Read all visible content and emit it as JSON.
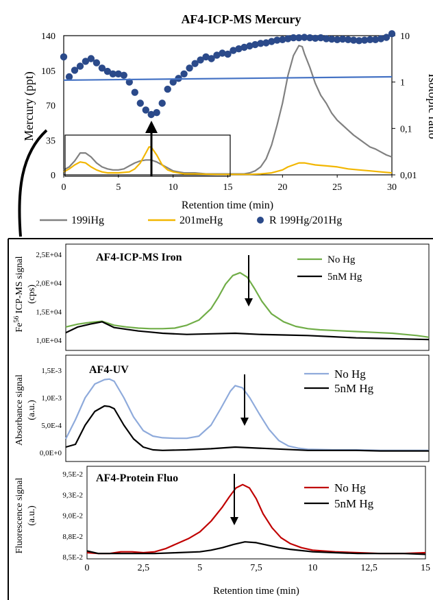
{
  "chart_data": [
    {
      "type": "line",
      "title": "AF4-ICP-MS Mercury",
      "xlabel": "Retention time (min)",
      "ylabel": "Mercury (ppt)",
      "y2label": "Isotopic ratio",
      "xlim": [
        0,
        30
      ],
      "ylim": [
        0,
        140
      ],
      "y2lim": [
        0.01,
        10
      ],
      "y2scale": "log",
      "x_ticks": [
        "0",
        "5",
        "10",
        "15",
        "20",
        "25",
        "30"
      ],
      "y_ticks": [
        "0",
        "35",
        "70",
        "105",
        "140"
      ],
      "y2_ticks": [
        "0,01",
        "0,1",
        "1",
        "10"
      ],
      "legend_position": "bottom",
      "series": [
        {
          "name": "199iHg",
          "color": "#808080",
          "x": [
            0,
            0.5,
            1,
            1.5,
            2,
            2.5,
            3,
            3.5,
            4,
            4.5,
            5,
            5.5,
            6,
            6.5,
            7,
            7.5,
            8,
            8.5,
            9,
            9.5,
            10,
            10.5,
            11,
            12,
            13,
            14,
            15,
            16,
            16.5,
            17,
            17.5,
            18,
            18.5,
            19,
            19.5,
            20,
            20.5,
            21,
            21.5,
            21.8,
            22,
            22.5,
            23,
            23.5,
            24,
            24.5,
            25,
            25.5,
            26,
            26.5,
            27,
            27.5,
            28,
            28.5,
            29,
            29.5,
            30
          ],
          "values": [
            5,
            8,
            14,
            22,
            22,
            18,
            12,
            8,
            6,
            5,
            5,
            6,
            9,
            12,
            14,
            15,
            15,
            13,
            10,
            7,
            4,
            3,
            2,
            2,
            1,
            1,
            1,
            1,
            1,
            2,
            4,
            8,
            16,
            30,
            50,
            72,
            100,
            120,
            130,
            129,
            122,
            108,
            92,
            80,
            72,
            62,
            55,
            50,
            45,
            40,
            36,
            32,
            28,
            26,
            23,
            20,
            18
          ]
        },
        {
          "name": "201meHg",
          "color": "#f2b600",
          "x": [
            0,
            0.5,
            1,
            1.5,
            2,
            2.5,
            3,
            3.5,
            4,
            5,
            6,
            6.5,
            7,
            7.5,
            7.8,
            8,
            8.5,
            9,
            9.5,
            10,
            11,
            12,
            14,
            16,
            17,
            18,
            19,
            20,
            20.5,
            21,
            21.5,
            22,
            22.5,
            23,
            24,
            25,
            26,
            27,
            28,
            29,
            30
          ],
          "values": [
            3,
            6,
            10,
            13,
            12,
            8,
            5,
            3,
            2,
            2,
            3,
            6,
            12,
            22,
            28,
            28,
            20,
            10,
            5,
            3,
            1,
            1,
            0.5,
            0.5,
            0.5,
            1,
            2,
            5,
            8,
            10,
            12,
            12,
            11,
            10,
            9,
            8,
            6,
            5,
            4,
            3,
            2
          ]
        },
        {
          "name": "R 199Hg/201Hg",
          "color": "#2b4a8a",
          "axis": "secondary",
          "marker": "circle",
          "x": [
            0,
            0.5,
            1,
            1.5,
            2,
            2.5,
            3,
            3.5,
            4,
            4.5,
            5,
            5.5,
            6,
            6.5,
            7,
            7.5,
            8,
            8.5,
            9,
            9.5,
            10,
            10.5,
            11,
            11.5,
            12,
            12.5,
            13,
            13.5,
            14,
            14.5,
            15,
            15.5,
            16,
            16.5,
            17,
            17.5,
            18,
            18.5,
            19,
            19.5,
            20,
            20.5,
            21,
            21.5,
            22,
            22.5,
            23,
            23.5,
            24,
            24.5,
            25,
            25.5,
            26,
            26.5,
            27,
            27.5,
            28,
            28.5,
            29,
            29.5,
            30
          ],
          "values": [
            3.5,
            1.3,
            1.8,
            2.2,
            2.8,
            3.2,
            2.6,
            2.0,
            1.7,
            1.5,
            1.5,
            1.4,
            1.0,
            0.6,
            0.35,
            0.25,
            0.2,
            0.22,
            0.35,
            0.7,
            1.0,
            1.2,
            1.5,
            2.0,
            2.5,
            3.0,
            3.5,
            3.2,
            3.8,
            4.2,
            4.0,
            4.8,
            5.2,
            5.6,
            6.0,
            6.4,
            6.8,
            7.0,
            7.5,
            8.0,
            8.2,
            8.6,
            9.0,
            9.0,
            9.2,
            9.0,
            8.8,
            9.0,
            8.6,
            8.4,
            8.2,
            8.4,
            8.2,
            8.0,
            7.8,
            8.0,
            8.2,
            8.2,
            8.6,
            9.2,
            11.0
          ]
        },
        {
          "name": "",
          "color": "#4472c4",
          "axis": "secondary",
          "x": [
            0,
            30
          ],
          "values": [
            1.1,
            1.3
          ]
        }
      ]
    },
    {
      "type": "line",
      "title": "AF4-ICP-MS Iron",
      "ylabel": "Fe56 ICP-MS signal (cps)",
      "ylabel_parts": [
        "Fe",
        "56",
        " ICP-MS signal",
        "(cps)"
      ],
      "xlim": [
        0,
        15
      ],
      "ylim": [
        10000,
        25000
      ],
      "y_ticks": [
        "1,0E+04",
        "1,5E+04",
        "2,0E+04",
        "2,5E+04"
      ],
      "legend_position": "top-right",
      "series": [
        {
          "name": "No Hg",
          "color": "#70ad47",
          "x": [
            0,
            0.5,
            1,
            1.5,
            2,
            2.5,
            3,
            3.5,
            4,
            4.5,
            5,
            5.5,
            6,
            6.3,
            6.6,
            6.9,
            7.2,
            7.5,
            7.8,
            8.1,
            8.5,
            9,
            9.5,
            10,
            10.5,
            11,
            11.5,
            12,
            12.5,
            13,
            13.5,
            14,
            14.5,
            15
          ],
          "values": [
            12300,
            12800,
            13100,
            13300,
            12600,
            12300,
            12100,
            12000,
            12000,
            12100,
            12600,
            13500,
            15500,
            17500,
            19800,
            21300,
            21800,
            21000,
            19000,
            16800,
            14600,
            13200,
            12400,
            12000,
            11800,
            11700,
            11600,
            11500,
            11400,
            11300,
            11200,
            11000,
            10800,
            10500
          ]
        },
        {
          "name": "5nM Hg",
          "color": "#000000",
          "x": [
            0,
            0.5,
            1,
            1.5,
            2,
            2.5,
            3,
            3.5,
            4,
            5,
            6,
            7,
            8,
            9,
            10,
            11,
            12,
            13,
            14,
            15
          ],
          "values": [
            11300,
            12300,
            12800,
            13200,
            12200,
            11900,
            11600,
            11400,
            11200,
            11000,
            11100,
            11200,
            11000,
            10900,
            10800,
            10600,
            10400,
            10300,
            10200,
            10100
          ]
        }
      ]
    },
    {
      "type": "line",
      "title": "AF4-UV",
      "ylabel": "Absorbance signal (a.u.)",
      "ylabel_parts": [
        "Absorbance signal",
        "(a.u.)"
      ],
      "xlim": [
        0,
        15
      ],
      "ylim": [
        0,
        0.0015
      ],
      "y_ticks": [
        "0,0E+0",
        "5,0E-4",
        "1,0E-3",
        "1,5E-3"
      ],
      "legend_position": "top-right",
      "series": [
        {
          "name": "No Hg",
          "color": "#8eaadb",
          "x": [
            0,
            0.4,
            0.8,
            1.2,
            1.6,
            1.8,
            2.0,
            2.4,
            2.8,
            3.2,
            3.6,
            4.0,
            4.5,
            5.0,
            5.5,
            6.0,
            6.4,
            6.8,
            7.0,
            7.3,
            7.6,
            8.0,
            8.4,
            8.8,
            9.2,
            9.6,
            10.0,
            11,
            12,
            13,
            14,
            15
          ],
          "values": [
            0.00025,
            0.0006,
            0.001,
            0.00125,
            0.00133,
            0.00134,
            0.0013,
            0.001,
            0.00065,
            0.0004,
            0.0003,
            0.00027,
            0.00026,
            0.00026,
            0.0003,
            0.0005,
            0.0008,
            0.00112,
            0.00122,
            0.00118,
            0.001,
            0.0007,
            0.00042,
            0.00022,
            0.00012,
            8e-05,
            6e-05,
            5e-05,
            5e-05,
            4e-05,
            4e-05,
            4e-05
          ]
        },
        {
          "name": "5nM Hg",
          "color": "#000000",
          "x": [
            0,
            0.4,
            0.8,
            1.2,
            1.6,
            1.8,
            2.0,
            2.4,
            2.8,
            3.2,
            3.6,
            4,
            5,
            6,
            7,
            8,
            9,
            10,
            11,
            12,
            13,
            14,
            15
          ],
          "values": [
            0.0001,
            0.00015,
            0.0005,
            0.00075,
            0.00085,
            0.00084,
            0.0008,
            0.0005,
            0.00025,
            0.0001,
            5e-05,
            4e-05,
            5e-05,
            7e-05,
            0.0001,
            8e-05,
            6e-05,
            4e-05,
            4e-05,
            4e-05,
            3e-05,
            3e-05,
            3e-05
          ]
        }
      ]
    },
    {
      "type": "line",
      "title": "AF4-Protein Fluo",
      "xlabel": "Retention time (min)",
      "ylabel": "Fluorescence signal (a.u.)",
      "ylabel_parts": [
        "Fluorescence signal",
        "(a.u.)"
      ],
      "xlim": [
        0,
        15
      ],
      "ylim": [
        0.085,
        0.095
      ],
      "x_ticks": [
        "0",
        "2,5",
        "5",
        "7,5",
        "10",
        "12,5",
        "15"
      ],
      "y_ticks": [
        "8,5E-2",
        "8,8E-2",
        "9,0E-2",
        "9,3E-2",
        "9,5E-2"
      ],
      "legend_position": "top-right",
      "series": [
        {
          "name": "No Hg",
          "color": "#c00000",
          "x": [
            0,
            0.5,
            1,
            1.5,
            2,
            2.5,
            3,
            3.5,
            4,
            4.5,
            5,
            5.5,
            6,
            6.3,
            6.6,
            6.9,
            7.2,
            7.5,
            7.8,
            8.2,
            8.6,
            9,
            9.5,
            10,
            11,
            12,
            13,
            14,
            15
          ],
          "values": [
            0.0855,
            0.0854,
            0.0854,
            0.0856,
            0.0856,
            0.0855,
            0.0856,
            0.086,
            0.0866,
            0.0872,
            0.088,
            0.0893,
            0.091,
            0.0922,
            0.0933,
            0.0937,
            0.0933,
            0.092,
            0.0902,
            0.0885,
            0.0873,
            0.0866,
            0.0861,
            0.0858,
            0.0856,
            0.0855,
            0.0854,
            0.0854,
            0.0855
          ]
        },
        {
          "name": "5nM Hg",
          "color": "#000000",
          "x": [
            0,
            0.5,
            1,
            2,
            3,
            4,
            5,
            5.5,
            6,
            6.5,
            7,
            7.5,
            8,
            8.5,
            9,
            10,
            11,
            12,
            13,
            14,
            15
          ],
          "values": [
            0.0857,
            0.0854,
            0.0854,
            0.0854,
            0.0854,
            0.0855,
            0.0856,
            0.0858,
            0.0861,
            0.0865,
            0.0868,
            0.0867,
            0.0864,
            0.0861,
            0.0859,
            0.0856,
            0.0855,
            0.0854,
            0.0854,
            0.0854,
            0.0853
          ]
        }
      ]
    }
  ]
}
